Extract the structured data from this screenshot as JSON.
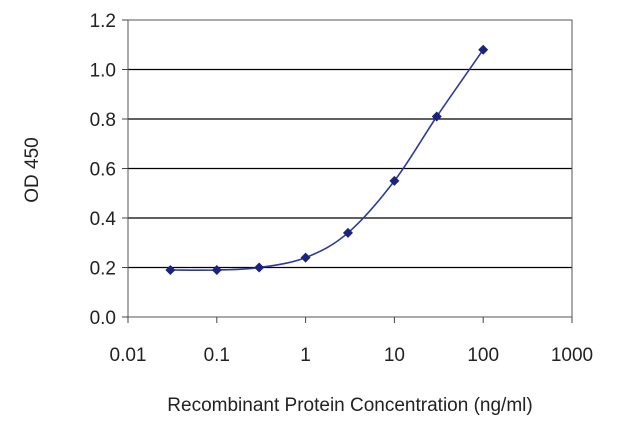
{
  "chart_data": {
    "type": "line",
    "title": "",
    "xlabel": "Recombinant Protein Concentration (ng/ml)",
    "ylabel": "OD 450",
    "x_scale": "log",
    "xlim": [
      0.01,
      1000
    ],
    "ylim": [
      0.0,
      1.2
    ],
    "x_ticks": [
      "0.01",
      "0.1",
      "1",
      "10",
      "100",
      "1000"
    ],
    "y_ticks": [
      "0.0",
      "0.2",
      "0.4",
      "0.6",
      "0.8",
      "1.0",
      "1.2"
    ],
    "grid": "horizontal",
    "series": [
      {
        "x": [
          0.03,
          0.1,
          0.3,
          1,
          3,
          10,
          30,
          100
        ],
        "y": [
          0.19,
          0.19,
          0.2,
          0.24,
          0.34,
          0.55,
          0.81,
          1.08
        ]
      }
    ],
    "colors": {
      "line": "#2b3a9a",
      "marker": "#1a237e",
      "grid": "#000000",
      "axis": "#444444"
    }
  }
}
